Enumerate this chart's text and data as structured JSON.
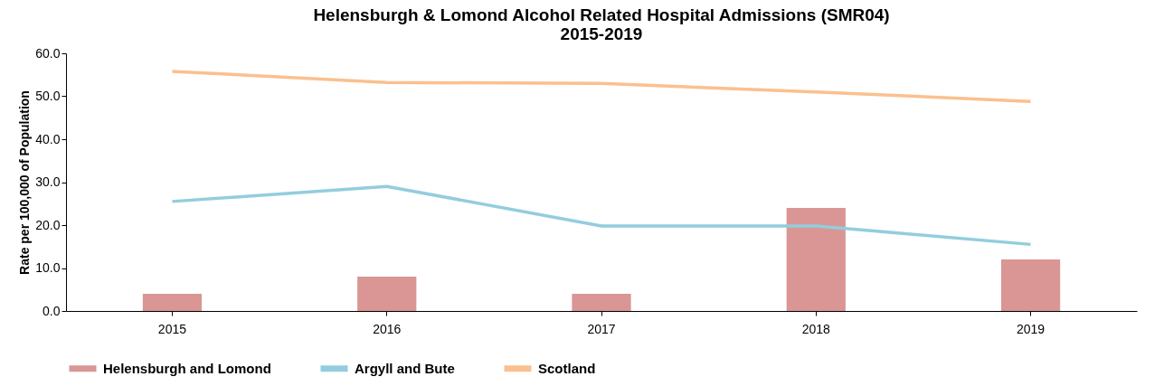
{
  "chart_data": {
    "type": "bar",
    "title": "Helensburgh & Lomond Alcohol Related Hospital Admissions (SMR04)\n2015-2019",
    "ylabel": "Rate per 100,000 of Population",
    "categories": [
      "2015",
      "2016",
      "2017",
      "2018",
      "2019"
    ],
    "series": [
      {
        "name": "Helensburgh and Lomond",
        "color": "#d99694",
        "values": [
          4.0,
          8.0,
          4.0,
          24.0,
          12.0
        ]
      },
      {
        "name": "Argyll and Bute",
        "type": "line",
        "color": "#93cddd",
        "values": [
          25.5,
          29.0,
          19.8,
          19.8,
          15.5
        ]
      },
      {
        "name": "Scotland",
        "type": "line",
        "color": "#fac090",
        "values": [
          55.8,
          53.2,
          53.0,
          51.0,
          48.8
        ]
      }
    ],
    "ylim": [
      0,
      60
    ],
    "yticks": [
      {
        "value": 0,
        "label": "0.0"
      },
      {
        "value": 10,
        "label": "10.0"
      },
      {
        "value": 20,
        "label": "20.0"
      },
      {
        "value": 30,
        "label": "30.0"
      },
      {
        "value": 40,
        "label": "40.0"
      },
      {
        "value": 50,
        "label": "50.0"
      },
      {
        "value": 60,
        "label": "60.0"
      }
    ],
    "grid": false,
    "legend": "bottom",
    "marker": "none"
  }
}
